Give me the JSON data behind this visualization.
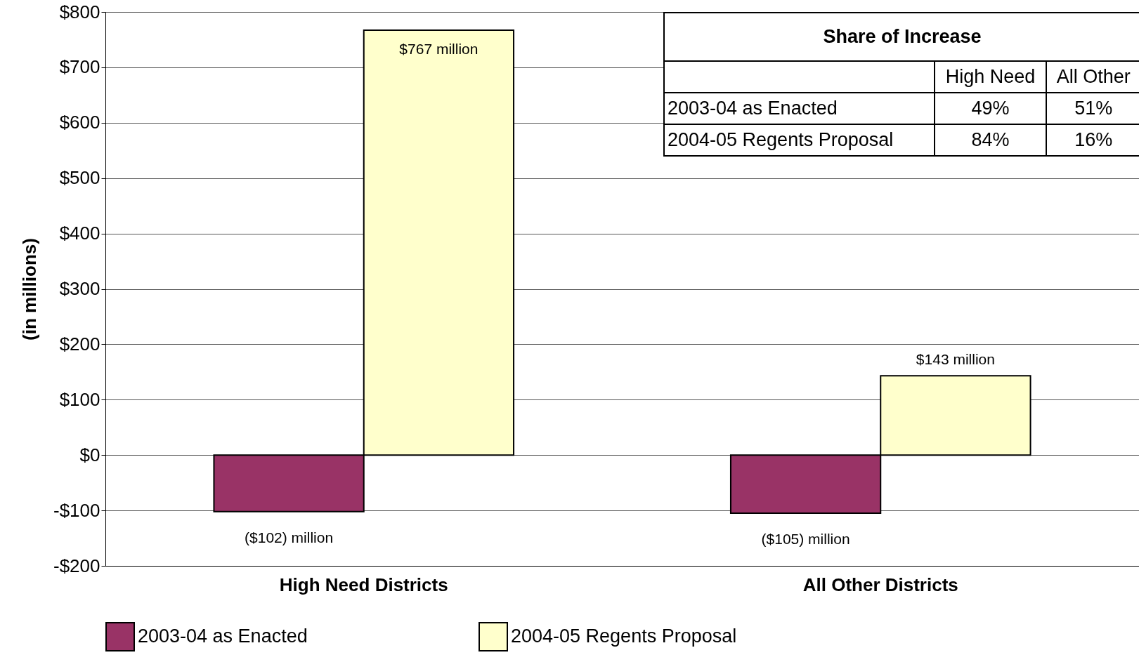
{
  "chart_data": {
    "type": "bar",
    "ylabel": "(in millions)",
    "categories": [
      "High Need Districts",
      "All Other Districts"
    ],
    "series": [
      {
        "name": "2003-04 as Enacted",
        "color": "#993366",
        "values": [
          -102,
          -105
        ],
        "value_labels": [
          "($102) million",
          "($105) million"
        ]
      },
      {
        "name": "2004-05 Regents Proposal",
        "color": "#ffffcc",
        "values": [
          767,
          143
        ],
        "value_labels": [
          "$767 million",
          "$143 million"
        ]
      }
    ],
    "ylim": [
      -200,
      800
    ],
    "yticks": [
      {
        "value": -200,
        "label": "-$200"
      },
      {
        "value": -100,
        "label": "-$100"
      },
      {
        "value": 0,
        "label": "$0"
      },
      {
        "value": 100,
        "label": "$100"
      },
      {
        "value": 200,
        "label": "$200"
      },
      {
        "value": 300,
        "label": "$300"
      },
      {
        "value": 400,
        "label": "$400"
      },
      {
        "value": 500,
        "label": "$500"
      },
      {
        "value": 600,
        "label": "$600"
      },
      {
        "value": 700,
        "label": "$700"
      },
      {
        "value": 800,
        "label": "$800"
      }
    ],
    "grid": "y",
    "legend": "bottom",
    "annotations": [
      "Share of Increase",
      "High Need",
      "All Other",
      "2003-04 as Enacted",
      "49%",
      "51%",
      "2004-05  Regents Proposal",
      "84%",
      "16%"
    ]
  }
}
